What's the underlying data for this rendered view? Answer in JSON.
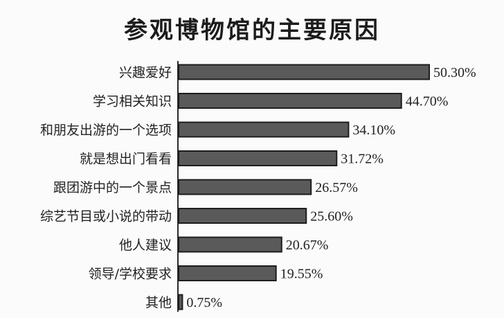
{
  "chart_data": {
    "type": "bar",
    "orientation": "horizontal",
    "title": "参观博物馆的主要原因",
    "categories": [
      "兴趣爱好",
      "学习相关知识",
      "和朋友出游的一个选项",
      "就是想出门看看",
      "跟团游中的一个景点",
      "综艺节目或小说的带动",
      "他人建议",
      "领导/学校要求",
      "其他"
    ],
    "values": [
      50.3,
      44.7,
      34.1,
      31.72,
      26.57,
      25.6,
      20.67,
      19.55,
      0.75
    ],
    "value_labels": [
      "50.30%",
      "44.70%",
      "34.10%",
      "31.72%",
      "26.57%",
      "25.60%",
      "20.67%",
      "19.55%",
      "0.75%"
    ],
    "xlim": [
      0,
      50.3
    ],
    "unit": "%",
    "grid": false,
    "legend": "none",
    "bar_color": "#5a5a5a"
  }
}
